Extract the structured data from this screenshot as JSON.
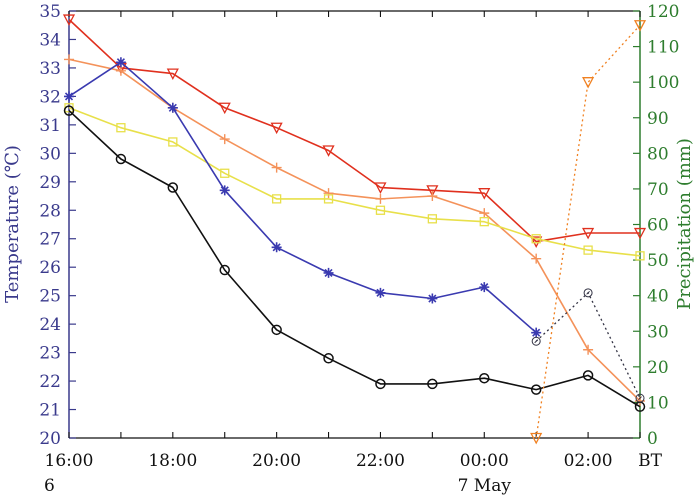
{
  "chart_data": {
    "type": "line",
    "ylabel": "Temperature (℃)",
    "y2label": "Precipitation (mm)",
    "xlabel": "",
    "ylim": [
      20,
      35
    ],
    "y2lim": [
      0,
      120
    ],
    "yticks": [
      20,
      21,
      22,
      23,
      24,
      25,
      26,
      27,
      28,
      29,
      30,
      31,
      32,
      33,
      34,
      35
    ],
    "y2ticks": [
      0,
      10,
      20,
      30,
      40,
      50,
      60,
      70,
      80,
      90,
      100,
      110,
      120
    ],
    "xlim": [
      0,
      11
    ],
    "xticks": [
      {
        "x": 0,
        "label": "16:00"
      },
      {
        "x": 2,
        "label": "18:00"
      },
      {
        "x": 4,
        "label": "20:00"
      },
      {
        "x": 6,
        "label": "22:00"
      },
      {
        "x": 8,
        "label": "00:00"
      },
      {
        "x": 10,
        "label": "02:00"
      }
    ],
    "x_unit_label": "BT",
    "date_labels": [
      {
        "x": 0,
        "label": "6"
      },
      {
        "x": 8,
        "label": "7  May"
      }
    ],
    "grid": false,
    "series": [
      {
        "axis": "left",
        "marker": "triangle-down",
        "color": "#e0301e",
        "dash": "solid",
        "x": [
          0,
          1,
          2,
          3,
          4,
          5,
          6,
          7,
          8,
          9,
          10,
          11
        ],
        "y": [
          34.7,
          33.0,
          32.8,
          31.6,
          30.9,
          30.1,
          28.8,
          28.7,
          28.6,
          26.9,
          27.2,
          27.2
        ]
      },
      {
        "axis": "left",
        "marker": "plus",
        "color": "#f4925a",
        "dash": "solid",
        "x": [
          0,
          1,
          2,
          3,
          4,
          5,
          6,
          7,
          8,
          9,
          10,
          11
        ],
        "y": [
          33.3,
          32.9,
          31.6,
          30.5,
          29.5,
          28.6,
          28.4,
          28.5,
          27.9,
          26.3,
          23.1,
          21.3
        ]
      },
      {
        "axis": "left",
        "marker": "square",
        "color": "#e8e04a",
        "dash": "solid",
        "x": [
          0,
          1,
          2,
          3,
          4,
          5,
          6,
          7,
          8,
          9,
          10,
          11
        ],
        "y": [
          31.6,
          30.9,
          30.4,
          29.3,
          28.4,
          28.4,
          28.0,
          27.7,
          27.6,
          27.0,
          26.6,
          26.4
        ]
      },
      {
        "axis": "left",
        "marker": "asterisk",
        "color": "#3a3ab0",
        "dash": "solid",
        "x": [
          0,
          1,
          2,
          3,
          4,
          5,
          6,
          7,
          8,
          9
        ],
        "y": [
          32.0,
          33.2,
          31.6,
          28.7,
          26.7,
          25.8,
          25.1,
          24.9,
          25.3,
          23.7
        ]
      },
      {
        "axis": "left",
        "marker": "circle",
        "color": "#111111",
        "dash": "solid",
        "x": [
          0,
          1,
          2,
          3,
          4,
          5,
          6,
          7,
          8,
          9,
          10,
          11
        ],
        "y": [
          31.5,
          29.8,
          28.8,
          25.9,
          23.8,
          22.8,
          21.9,
          21.9,
          22.1,
          21.7,
          22.2,
          21.1
        ]
      },
      {
        "axis": "left",
        "marker": "circle-dot",
        "color": "#333344",
        "dash": "dotted",
        "x": [
          9,
          10,
          11
        ],
        "y": [
          23.4,
          25.1,
          21.4
        ]
      },
      {
        "axis": "right",
        "marker": "triangle-down",
        "color": "#f08020",
        "dash": "dotted",
        "x": [
          9,
          10,
          11
        ],
        "y": [
          0,
          100,
          116
        ]
      }
    ]
  }
}
